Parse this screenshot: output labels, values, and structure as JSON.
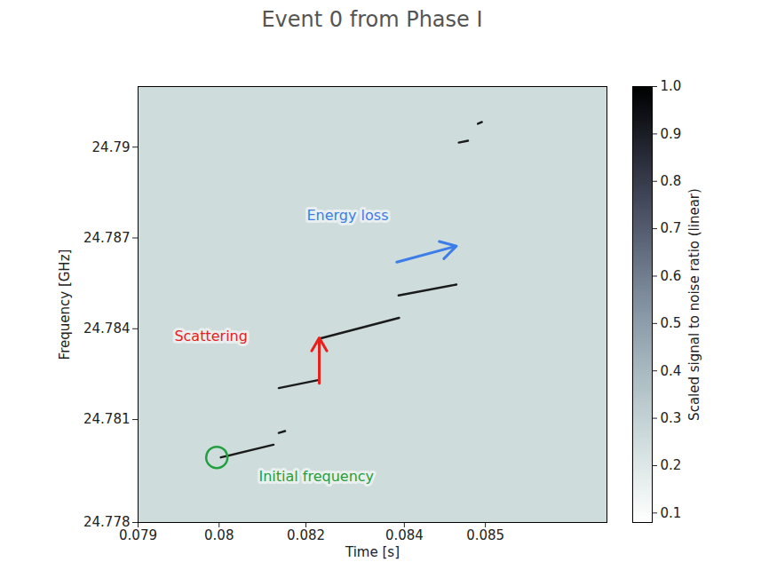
{
  "chart_data": {
    "type": "line",
    "title": "Event 0 from Phase I",
    "x_label": "Time [s]",
    "y_label": "Frequency [GHz]",
    "xlim": [
      0.079,
      0.0871
    ],
    "xticks": [
      0.079,
      {
        "value": 0.0804,
        "label": "0.08"
      },
      {
        "value": 0.0819,
        "label": "0.082"
      },
      {
        "value": 0.0836,
        "label": "0.084"
      },
      0.085
    ],
    "ylim": [
      24.7776,
      24.792
    ],
    "yticks": [
      {
        "value": 24.7776,
        "label": "24.778"
      },
      24.781,
      24.784,
      24.787,
      24.79
    ],
    "grid": false,
    "color": "#1b1b1b",
    "tracks": [
      {
        "x": [
          0.08043,
          0.08134
        ],
        "values": [
          24.77975,
          24.78017
        ]
      },
      {
        "x": [
          0.08143,
          0.08154
        ],
        "values": [
          24.78056,
          24.78062
        ]
      },
      {
        "x": [
          0.08143,
          0.08213
        ],
        "values": [
          24.78204,
          24.78231
        ]
      },
      {
        "x": [
          0.08213,
          0.08351
        ],
        "values": [
          24.78367,
          24.78436
        ]
      },
      {
        "x": [
          0.0835,
          0.0845
        ],
        "values": [
          24.7851,
          24.78546
        ]
      },
      {
        "x": [
          0.08454,
          0.0847
        ],
        "values": [
          24.79015,
          24.79021
        ]
      },
      {
        "x": [
          0.08487,
          0.08494
        ],
        "values": [
          24.79077,
          24.79083
        ]
      }
    ],
    "annotations": [
      {
        "text": "Energy loss",
        "x": 0.08262,
        "y": 24.78774,
        "color": "#3d7de8"
      },
      {
        "text": "Scattering",
        "x": 0.08026,
        "y": 24.78376,
        "color": "#e8201c"
      },
      {
        "text": "Initial frequency",
        "x": 0.08208,
        "y": 24.7791,
        "color": "#22a040"
      }
    ],
    "arrows": [
      {
        "x1": 0.08213,
        "y1": 24.7822,
        "x2": 0.08213,
        "y2": 24.7837,
        "color": "#e8201c"
      },
      {
        "x1": 0.08347,
        "y1": 24.7862,
        "x2": 0.0845,
        "y2": 24.78673,
        "color": "#3d7de8"
      }
    ],
    "markers": [
      {
        "x": 0.08036,
        "y": 24.77975,
        "color": "#22a040",
        "marker": "circle"
      }
    ],
    "colorbar": {
      "label": "Scaled signal to noise ratio (linear)",
      "range": [
        0.08,
        1.0
      ],
      "ticks": [
        0.1,
        0.2,
        0.3,
        0.4,
        0.5,
        0.6,
        0.7,
        0.8,
        0.9,
        {
          "value": 1,
          "label": "1.0"
        }
      ]
    }
  }
}
